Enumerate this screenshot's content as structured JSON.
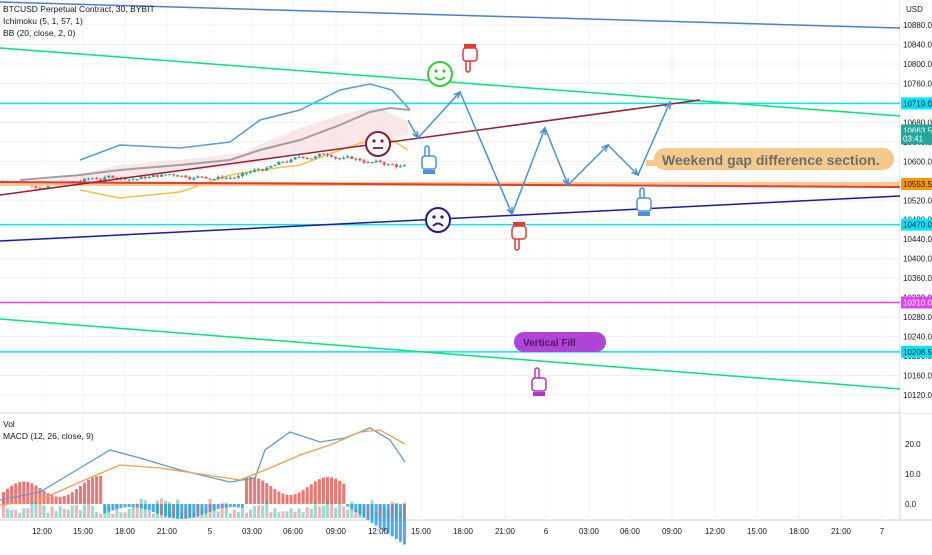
{
  "header": {
    "title": "BTCUSD Perpetual Contract, 30, BYBIT",
    "ichimoku": "Ichimoku (5, 1, 57, 1)",
    "bb": "BB (20, close, 2, 0)",
    "vol": "Vol",
    "macd": "MACD (12, 26, close, 9)"
  },
  "price_axis": {
    "currency": "USD",
    "ticks": [
      "10880.0",
      "10840.0",
      "10800.0",
      "10760.0",
      "10720.0",
      "10680.0",
      "10640.0",
      "10600.0",
      "10560.0",
      "10520.0",
      "10480.0",
      "10440.0",
      "10400.0",
      "10360.0",
      "10320.0",
      "10280.0",
      "10240.0",
      "10200.0",
      "10160.0",
      "10120.0"
    ],
    "labels": [
      {
        "text": "10719.0",
        "value": 10719.0,
        "bg": "#00e5ff",
        "fg": "#131722"
      },
      {
        "text": "10663.5",
        "value": 10663.5,
        "bg": "#26a69a",
        "fg": "#ffffff"
      },
      {
        "text": "03:41",
        "value": 10647.0,
        "bg": "#26a69a",
        "fg": "#ffffff"
      },
      {
        "text": "10553.5",
        "value": 10553.5,
        "bg": "#ff9800",
        "fg": "#131722"
      },
      {
        "text": "10470.0",
        "value": 10470.0,
        "bg": "#00e5ff",
        "fg": "#131722"
      },
      {
        "text": "10310.0",
        "value": 10310.0,
        "bg": "#e040fb",
        "fg": "#ffffff"
      },
      {
        "text": "10208.5",
        "value": 10208.5,
        "bg": "#00e5ff",
        "fg": "#131722"
      }
    ]
  },
  "macd_axis": {
    "ticks": [
      "20.0",
      "10.0",
      "0.0"
    ]
  },
  "time_axis": {
    "ticks": [
      "12:00",
      "15:00",
      "18:00",
      "21:00",
      "5",
      "03:00",
      "06:00",
      "09:00",
      "12:00",
      "15:00",
      "18:00",
      "21:00",
      "6",
      "03:00",
      "06:00",
      "09:00",
      "12:00",
      "15:00",
      "18:00",
      "21:00",
      "7"
    ]
  },
  "annotations": {
    "weekend": "Weekend gap difference section.",
    "purple": "Vertical Fill"
  },
  "colors": {
    "horizontal_line": "#00e5ff",
    "gap_band": "#f5c98a",
    "red_line": "#e53935",
    "green_channel": "#00e676",
    "blue_line": "#1a1aa8",
    "maroon_line": "#9b1b30",
    "top_blue_line": "#4a7fd6",
    "magenta_line": "#e040fb",
    "up_candle": "#26a69a",
    "down_candle": "#ef5350",
    "macd_line": "#5b9bd5",
    "signal_line": "#f0a04b"
  },
  "chart_data": {
    "type": "candlestick",
    "symbol": "BTCUSD Perpetual Contract",
    "interval": "30",
    "exchange": "BYBIT",
    "ylim": [
      10112,
      10900
    ],
    "horizontal_levels": [
      10719.0,
      10553.5,
      10470.0,
      10310.0,
      10208.5
    ],
    "last_price": 10663.5,
    "macd_ylim": [
      -10,
      25
    ]
  }
}
